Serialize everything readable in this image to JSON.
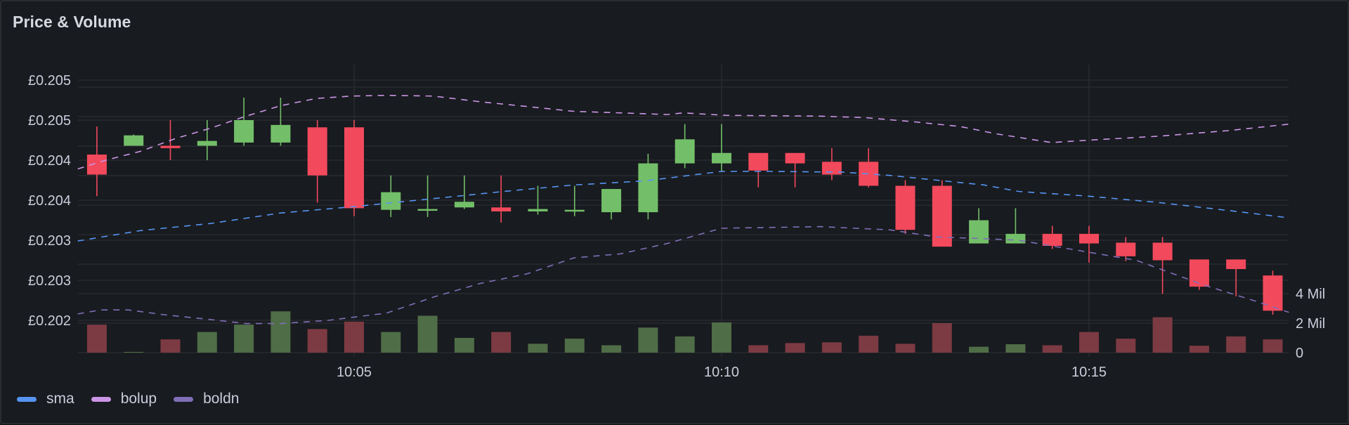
{
  "panel": {
    "title": "Price & Volume"
  },
  "legend": [
    {
      "name": "sma",
      "color": "#5794f2"
    },
    {
      "name": "bolup",
      "color": "#ca95e5"
    },
    {
      "name": "boldn",
      "color": "#806eb7"
    }
  ],
  "colors": {
    "up": "#73bf69",
    "down": "#f2495c",
    "up_volume": "#4f6d47",
    "down_volume": "#7c3a42",
    "grid": "#2c2e33",
    "text": "#ccccdc"
  },
  "chart_data": {
    "type": "candlestick",
    "title": "Price & Volume",
    "xlabel": "",
    "ylabel": "",
    "x_ticks": [
      "10:05",
      "10:10",
      "10:15"
    ],
    "y_ticks_left": [
      "£0.205",
      "£0.205",
      "£0.204",
      "£0.204",
      "£0.203",
      "£0.203",
      "£0.202"
    ],
    "y_tick_values_left": [
      0.205,
      0.2045,
      0.204,
      0.2035,
      0.203,
      0.2025,
      0.202
    ],
    "y_ticks_right": [
      "4 Mil",
      "2 Mil",
      "0"
    ],
    "y_tick_values_right": [
      4,
      2,
      0
    ],
    "volume_unit": "Mil",
    "interval_seconds": 30,
    "grid": true,
    "legend_position": "bottom",
    "candles": [
      {
        "time": "10:01:30",
        "open": 0.20407,
        "high": 0.20442,
        "low": 0.20355,
        "close": 0.20382,
        "volume": 1.9
      },
      {
        "time": "10:02:00",
        "open": 0.20418,
        "high": 0.20432,
        "low": 0.20418,
        "close": 0.20431,
        "volume": 0.05
      },
      {
        "time": "10:02:30",
        "open": 0.20418,
        "high": 0.2045,
        "low": 0.204,
        "close": 0.20415,
        "volume": 0.9
      },
      {
        "time": "10:03:00",
        "open": 0.20418,
        "high": 0.2045,
        "low": 0.204,
        "close": 0.20424,
        "volume": 1.4
      },
      {
        "time": "10:03:30",
        "open": 0.20422,
        "high": 0.20478,
        "low": 0.20418,
        "close": 0.2045,
        "volume": 1.9
      },
      {
        "time": "10:04:00",
        "open": 0.20422,
        "high": 0.20478,
        "low": 0.20418,
        "close": 0.20444,
        "volume": 2.8
      },
      {
        "time": "10:04:30",
        "open": 0.20441,
        "high": 0.2045,
        "low": 0.20347,
        "close": 0.20381,
        "volume": 1.6
      },
      {
        "time": "10:05:00",
        "open": 0.20441,
        "high": 0.2045,
        "low": 0.2033,
        "close": 0.2034,
        "volume": 2.1
      },
      {
        "time": "10:05:30",
        "open": 0.20338,
        "high": 0.20381,
        "low": 0.20329,
        "close": 0.2036,
        "volume": 1.4
      },
      {
        "time": "10:06:00",
        "open": 0.20338,
        "high": 0.20381,
        "low": 0.20329,
        "close": 0.20339,
        "volume": 2.5
      },
      {
        "time": "10:06:30",
        "open": 0.20341,
        "high": 0.20381,
        "low": 0.20339,
        "close": 0.20348,
        "volume": 1.0
      },
      {
        "time": "10:07:00",
        "open": 0.20341,
        "high": 0.20381,
        "low": 0.20322,
        "close": 0.20336,
        "volume": 1.4
      },
      {
        "time": "10:07:30",
        "open": 0.20336,
        "high": 0.20368,
        "low": 0.20332,
        "close": 0.20339,
        "volume": 0.6
      },
      {
        "time": "10:08:00",
        "open": 0.20336,
        "high": 0.20368,
        "low": 0.2033,
        "close": 0.20338,
        "volume": 0.95
      },
      {
        "time": "10:08:30",
        "open": 0.20335,
        "high": 0.20364,
        "low": 0.20326,
        "close": 0.20364,
        "volume": 0.5
      },
      {
        "time": "10:09:00",
        "open": 0.20335,
        "high": 0.20408,
        "low": 0.20326,
        "close": 0.20396,
        "volume": 1.7
      },
      {
        "time": "10:09:30",
        "open": 0.20396,
        "high": 0.20445,
        "low": 0.2039,
        "close": 0.20426,
        "volume": 1.1
      },
      {
        "time": "10:10:00",
        "open": 0.20396,
        "high": 0.20445,
        "low": 0.20386,
        "close": 0.20409,
        "volume": 2.05
      },
      {
        "time": "10:10:30",
        "open": 0.20409,
        "high": 0.20409,
        "low": 0.20366,
        "close": 0.20387,
        "volume": 0.5
      },
      {
        "time": "10:11:00",
        "open": 0.20409,
        "high": 0.20409,
        "low": 0.20366,
        "close": 0.20396,
        "volume": 0.65
      },
      {
        "time": "10:11:30",
        "open": 0.20398,
        "high": 0.20415,
        "low": 0.20375,
        "close": 0.20382,
        "volume": 0.7
      },
      {
        "time": "10:12:00",
        "open": 0.20398,
        "high": 0.20415,
        "low": 0.20366,
        "close": 0.20368,
        "volume": 1.15
      },
      {
        "time": "10:12:30",
        "open": 0.20368,
        "high": 0.20375,
        "low": 0.20308,
        "close": 0.20313,
        "volume": 0.6
      },
      {
        "time": "10:13:00",
        "open": 0.20368,
        "high": 0.20375,
        "low": 0.20292,
        "close": 0.20292,
        "volume": 2.0
      },
      {
        "time": "10:13:30",
        "open": 0.20296,
        "high": 0.2034,
        "low": 0.20296,
        "close": 0.20325,
        "volume": 0.4
      },
      {
        "time": "10:14:00",
        "open": 0.20296,
        "high": 0.2034,
        "low": 0.20296,
        "close": 0.20308,
        "volume": 0.57
      },
      {
        "time": "10:14:30",
        "open": 0.20308,
        "high": 0.20318,
        "low": 0.20289,
        "close": 0.20293,
        "volume": 0.5
      },
      {
        "time": "10:15:00",
        "open": 0.20308,
        "high": 0.20318,
        "low": 0.20272,
        "close": 0.20296,
        "volume": 1.4
      },
      {
        "time": "10:15:30",
        "open": 0.20297,
        "high": 0.20304,
        "low": 0.20274,
        "close": 0.2028,
        "volume": 0.95
      },
      {
        "time": "10:16:00",
        "open": 0.20297,
        "high": 0.20304,
        "low": 0.20233,
        "close": 0.20275,
        "volume": 2.4
      },
      {
        "time": "10:16:30",
        "open": 0.20276,
        "high": 0.20276,
        "low": 0.20238,
        "close": 0.20242,
        "volume": 0.47
      },
      {
        "time": "10:17:00",
        "open": 0.20276,
        "high": 0.20276,
        "low": 0.2023,
        "close": 0.20264,
        "volume": 1.1
      },
      {
        "time": "10:17:30",
        "open": 0.20256,
        "high": 0.20262,
        "low": 0.20207,
        "close": 0.20212,
        "volume": 0.9
      }
    ],
    "series": [
      {
        "name": "sma",
        "style": "dashed",
        "color": "#5794f2",
        "points": [
          [
            1.24,
            0.20299
          ],
          [
            2.09,
            0.20312
          ],
          [
            3.05,
            0.20321
          ],
          [
            4.0,
            0.20334
          ],
          [
            5.0,
            0.20342
          ],
          [
            6.08,
            0.20352
          ],
          [
            7.04,
            0.20361
          ],
          [
            7.99,
            0.20369
          ],
          [
            8.95,
            0.20374
          ],
          [
            9.74,
            0.20383
          ],
          [
            10.0,
            0.20386
          ],
          [
            10.7,
            0.20386
          ],
          [
            11.65,
            0.20385
          ],
          [
            12.29,
            0.20381
          ],
          [
            12.93,
            0.20375
          ],
          [
            13.57,
            0.20369
          ],
          [
            14.04,
            0.20361
          ],
          [
            15.0,
            0.20355
          ],
          [
            15.96,
            0.20347
          ],
          [
            16.91,
            0.20337
          ],
          [
            17.72,
            0.20328
          ]
        ]
      },
      {
        "name": "bolup",
        "style": "dashed",
        "color": "#ca95e5",
        "points": [
          [
            1.24,
            0.20389
          ],
          [
            1.62,
            0.204
          ],
          [
            2.09,
            0.20411
          ],
          [
            2.57,
            0.20427
          ],
          [
            3.05,
            0.2044
          ],
          [
            3.53,
            0.20455
          ],
          [
            4.0,
            0.20468
          ],
          [
            4.48,
            0.20477
          ],
          [
            4.96,
            0.2048
          ],
          [
            5.44,
            0.20481
          ],
          [
            6.08,
            0.2048
          ],
          [
            6.71,
            0.20473
          ],
          [
            7.35,
            0.20467
          ],
          [
            7.99,
            0.20461
          ],
          [
            8.62,
            0.20459
          ],
          [
            9.26,
            0.20457
          ],
          [
            9.48,
            0.20459
          ],
          [
            10.06,
            0.20456
          ],
          [
            11.34,
            0.20455
          ],
          [
            11.97,
            0.20453
          ],
          [
            12.61,
            0.20448
          ],
          [
            13.25,
            0.20442
          ],
          [
            13.73,
            0.20433
          ],
          [
            14.49,
            0.20422
          ],
          [
            15.0,
            0.20425
          ],
          [
            15.96,
            0.2043
          ],
          [
            16.91,
            0.20437
          ],
          [
            17.72,
            0.20445
          ]
        ]
      },
      {
        "name": "boldn",
        "style": "dashed",
        "color": "#806eb7",
        "points": [
          [
            1.24,
            0.20208
          ],
          [
            1.55,
            0.20213
          ],
          [
            1.93,
            0.20213
          ],
          [
            2.41,
            0.20207
          ],
          [
            3.05,
            0.20201
          ],
          [
            3.53,
            0.20196
          ],
          [
            4.0,
            0.20196
          ],
          [
            4.65,
            0.202
          ],
          [
            5.44,
            0.20209
          ],
          [
            6.08,
            0.20229
          ],
          [
            6.71,
            0.20246
          ],
          [
            7.35,
            0.20258
          ],
          [
            7.99,
            0.20278
          ],
          [
            8.62,
            0.20283
          ],
          [
            9.26,
            0.20296
          ],
          [
            10.0,
            0.20315
          ],
          [
            11.34,
            0.20317
          ],
          [
            12.29,
            0.20313
          ],
          [
            12.93,
            0.20304
          ],
          [
            13.57,
            0.20302
          ],
          [
            14.04,
            0.203
          ],
          [
            14.68,
            0.2029
          ],
          [
            15.64,
            0.20275
          ],
          [
            16.6,
            0.20243
          ],
          [
            17.23,
            0.20225
          ],
          [
            17.72,
            0.2021
          ]
        ]
      }
    ],
    "x_range_minutes_after_10": [
      1.06,
      17.97
    ],
    "ylim_price": [
      0.20195,
      0.20518
    ],
    "ylim_volume_mil": [
      0,
      18.9
    ]
  }
}
